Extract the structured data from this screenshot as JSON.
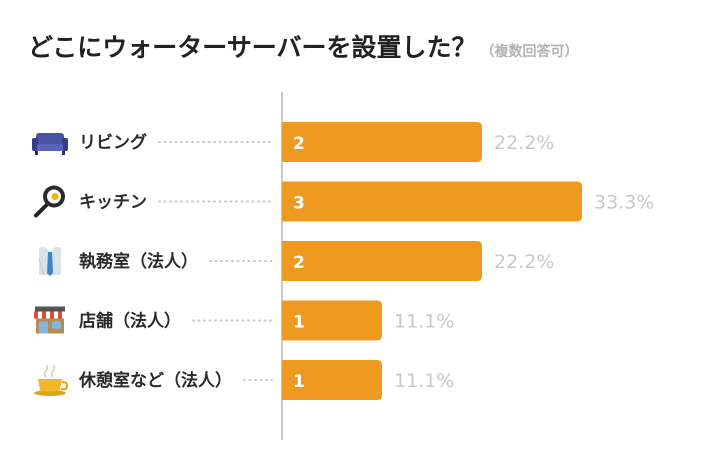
{
  "title": "どこにウォーターサーバーを設置した？",
  "subtitle": "（複数回答可）",
  "colors": {
    "bar": "#ee9a20",
    "axis": "#b5b5b5",
    "percent": "#c8c8c8",
    "dots": "#c9c9c9"
  },
  "chart_data": {
    "type": "bar",
    "orientation": "horizontal",
    "title": "どこにウォーターサーバーを設置した？",
    "subtitle": "（複数回答可）",
    "categories": [
      "リビング",
      "キッチン",
      "執務室（法人）",
      "店舗（法人）",
      "休憩室など（法人）"
    ],
    "icons": [
      "sofa-icon",
      "frying-pan-icon",
      "office-worker-icon",
      "shop-icon",
      "tea-cup-icon"
    ],
    "values": [
      2,
      3,
      2,
      1,
      1
    ],
    "percent_labels": [
      "22.2%",
      "33.3%",
      "22.2%",
      "11.1%",
      "11.1%"
    ],
    "xlim": [
      0,
      3
    ],
    "grid": false,
    "legend": "none"
  }
}
